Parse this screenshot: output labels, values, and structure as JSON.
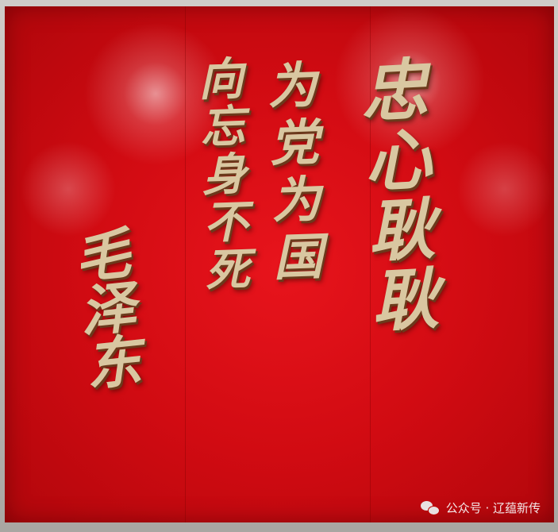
{
  "calligraphy": {
    "columns": [
      "忠心耿耿",
      "为党为国",
      "向忘身不死",
      "毛泽东"
    ]
  },
  "watermark": {
    "icon": "wechat-icon",
    "text": "公众号 · 辽蕴新传"
  }
}
